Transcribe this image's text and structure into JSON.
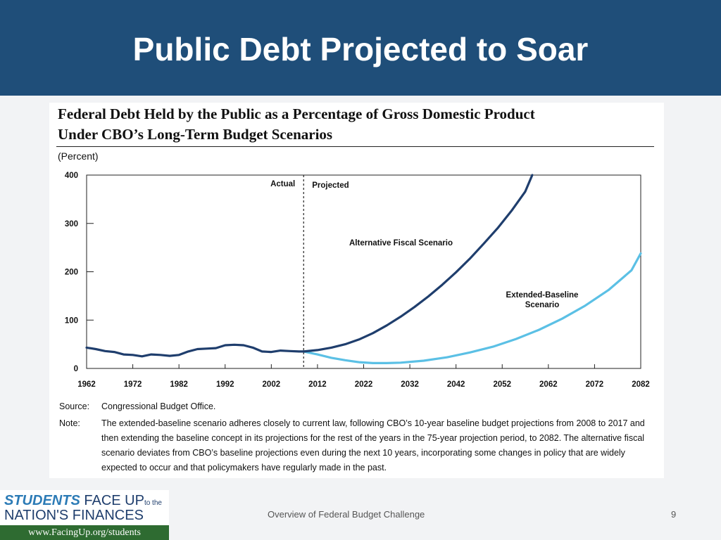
{
  "slide": {
    "title": "Public Debt Projected to Soar",
    "footer": "Overview of Federal Budget Challenge",
    "page_number": "9",
    "colors": {
      "title_bar": "#1f4e79",
      "background": "#f2f3f5"
    }
  },
  "logo": {
    "line1_em": "STUDENTS",
    "line1_text": "FACE UP",
    "line1_small": "to the",
    "line2": "NATION'S FINANCES",
    "url": "www.FacingUp.org/students"
  },
  "chart_data": {
    "type": "line",
    "title_line1": "Federal Debt Held by the Public as a Percentage of Gross Domestic Product",
    "title_line2": "Under CBO’s Long-Term Budget Scenarios",
    "ylabel": "(Percent)",
    "ylim": [
      0,
      400
    ],
    "xlim": [
      1962,
      2082
    ],
    "y_ticks": [
      0,
      100,
      200,
      300,
      400
    ],
    "x_ticks": [
      1962,
      1972,
      1982,
      1992,
      2002,
      2012,
      2022,
      2032,
      2042,
      2052,
      2062,
      2072,
      2082
    ],
    "divider": {
      "x": 2009,
      "left_label": "Actual",
      "right_label": "Projected"
    },
    "series": [
      {
        "name": "Historical",
        "color": "#1f3e6d",
        "x": [
          1962,
          1964,
          1966,
          1968,
          1970,
          1972,
          1974,
          1976,
          1978,
          1980,
          1982,
          1984,
          1986,
          1988,
          1990,
          1992,
          1994,
          1996,
          1998,
          2000,
          2002,
          2004,
          2006,
          2008,
          2009
        ],
        "values": [
          43,
          40,
          36,
          34,
          29,
          28,
          25,
          29,
          28,
          26,
          28,
          35,
          40,
          41,
          42,
          48,
          49,
          48,
          43,
          35,
          34,
          37,
          36,
          35,
          35
        ]
      },
      {
        "name": "Alternative Fiscal Scenario",
        "label": "Alternative Fiscal Scenario",
        "color": "#1f3e6d",
        "x": [
          2009,
          2012,
          2015,
          2018,
          2021,
          2024,
          2027,
          2030,
          2033,
          2036,
          2039,
          2042,
          2045,
          2048,
          2051,
          2054,
          2057,
          2058.5
        ],
        "values": [
          35,
          38,
          43,
          50,
          60,
          73,
          89,
          107,
          127,
          149,
          173,
          199,
          227,
          258,
          290,
          326,
          366,
          400
        ]
      },
      {
        "name": "Extended-Baseline Scenario",
        "label_line1": "Extended-Baseline",
        "label_line2": "Scenario",
        "color": "#5bc0e5",
        "x": [
          2009,
          2012,
          2015,
          2018,
          2021,
          2024,
          2027,
          2030,
          2035,
          2040,
          2045,
          2050,
          2055,
          2060,
          2065,
          2070,
          2075,
          2080,
          2082
        ],
        "values": [
          35,
          29,
          22,
          17,
          13,
          11,
          11,
          12,
          16,
          23,
          33,
          45,
          61,
          80,
          103,
          130,
          162,
          203,
          238
        ]
      }
    ]
  },
  "notes": {
    "source_label": "Source:",
    "source_text": "Congressional Budget Office.",
    "note_label": "Note:",
    "note_text": "The extended-baseline scenario adheres closely to current law, following CBO’s 10-year baseline budget projections from 2008 to 2017 and then extending the baseline concept in its projections for the rest of the years in the 75-year projection period, to 2082. The alternative fiscal scenario deviates from CBO’s baseline projections even during the next 10 years, incorporating some changes in policy that are widely expected to occur and that policymakers have regularly made in the past."
  }
}
